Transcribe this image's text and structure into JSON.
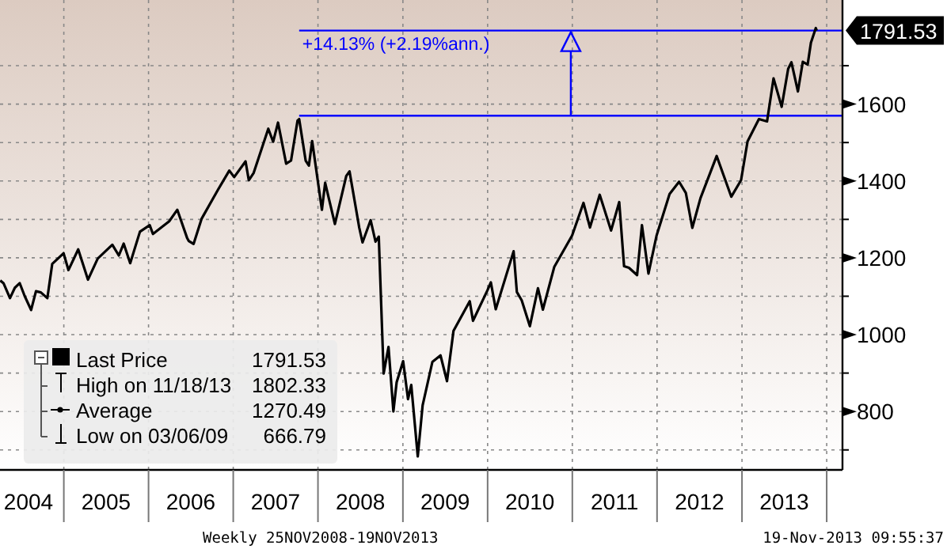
{
  "chart_data": {
    "type": "line",
    "x": [
      "2004-04-02",
      "2004-04-16",
      "2004-05-14",
      "2004-06-04",
      "2004-06-25",
      "2004-07-16",
      "2004-08-13",
      "2004-09-03",
      "2004-09-24",
      "2004-10-22",
      "2004-11-12",
      "2004-12-31",
      "2005-01-21",
      "2005-03-04",
      "2005-04-15",
      "2005-05-27",
      "2005-07-29",
      "2005-08-26",
      "2005-09-16",
      "2005-10-14",
      "2005-11-25",
      "2006-01-06",
      "2006-01-20",
      "2006-03-31",
      "2006-05-05",
      "2006-06-16",
      "2006-06-23",
      "2006-07-14",
      "2006-08-18",
      "2006-10-27",
      "2006-12-15",
      "2007-01-05",
      "2007-02-23",
      "2007-03-09",
      "2007-03-30",
      "2007-06-01",
      "2007-06-22",
      "2007-07-13",
      "2007-08-17",
      "2007-09-07",
      "2007-10-05",
      "2007-10-12",
      "2007-11-09",
      "2007-11-23",
      "2007-12-07",
      "2008-01-18",
      "2008-02-01",
      "2008-03-14",
      "2008-05-02",
      "2008-05-16",
      "2008-06-27",
      "2008-07-11",
      "2008-08-15",
      "2008-09-05",
      "2008-09-19",
      "2008-10-10",
      "2008-10-31",
      "2008-11-21",
      "2008-12-05",
      "2009-01-02",
      "2009-01-23",
      "2009-02-06",
      "2009-03-06",
      "2009-03-27",
      "2009-05-08",
      "2009-06-12",
      "2009-07-10",
      "2009-08-07",
      "2009-10-16",
      "2009-10-30",
      "2009-12-31",
      "2010-01-15",
      "2010-02-05",
      "2010-04-23",
      "2010-05-07",
      "2010-05-28",
      "2010-07-02",
      "2010-08-06",
      "2010-08-27",
      "2010-10-15",
      "2010-12-31",
      "2011-02-18",
      "2011-03-18",
      "2011-04-29",
      "2011-06-17",
      "2011-07-22",
      "2011-08-12",
      "2011-09-02",
      "2011-10-07",
      "2011-10-28",
      "2011-11-25",
      "2011-12-30",
      "2012-02-24",
      "2012-04-05",
      "2012-05-04",
      "2012-06-01",
      "2012-07-06",
      "2012-09-14",
      "2012-11-16",
      "2012-12-28",
      "2013-01-25",
      "2013-03-15",
      "2013-04-19",
      "2013-05-17",
      "2013-06-21",
      "2013-07-19",
      "2013-08-02",
      "2013-08-30",
      "2013-09-20",
      "2013-10-11",
      "2013-10-25",
      "2013-11-15",
      "2013-11-19"
    ],
    "series": [
      {
        "name": "Last Price",
        "color": "#000000",
        "values": [
          1141,
          1134,
          1095,
          1122,
          1134,
          1101,
          1064,
          1113,
          1110,
          1095,
          1184,
          1212,
          1168,
          1222,
          1143,
          1198,
          1234,
          1206,
          1237,
          1186,
          1268,
          1285,
          1262,
          1295,
          1325,
          1252,
          1244,
          1236,
          1302,
          1377,
          1427,
          1410,
          1451,
          1402,
          1421,
          1536,
          1502,
          1552,
          1445,
          1453,
          1557,
          1561,
          1453,
          1440,
          1504,
          1325,
          1395,
          1288,
          1413,
          1425,
          1278,
          1240,
          1298,
          1242,
          1255,
          899,
          968,
          800,
          876,
          931,
          832,
          869,
          683,
          816,
          929,
          946,
          879,
          1010,
          1087,
          1036,
          1115,
          1136,
          1066,
          1217,
          1111,
          1089,
          1022,
          1121,
          1065,
          1176,
          1258,
          1343,
          1279,
          1364,
          1271,
          1345,
          1178,
          1174,
          1155,
          1285,
          1159,
          1258,
          1366,
          1398,
          1369,
          1278,
          1355,
          1465,
          1359,
          1402,
          1503,
          1561,
          1555,
          1667,
          1593,
          1692,
          1709,
          1633,
          1710,
          1703,
          1760,
          1798,
          1791.53
        ]
      }
    ],
    "xlim": [
      "2004-04-01",
      "2014-03-10"
    ],
    "xticks": [
      {
        "value": "2004-07-02",
        "label": "2004"
      },
      {
        "value": "2005-01-01",
        "label": null
      },
      {
        "value": "2005-07-02",
        "label": "2005"
      },
      {
        "value": "2006-01-01",
        "label": null
      },
      {
        "value": "2006-07-02",
        "label": "2006"
      },
      {
        "value": "2007-01-01",
        "label": null
      },
      {
        "value": "2007-07-02",
        "label": "2007"
      },
      {
        "value": "2008-01-01",
        "label": null
      },
      {
        "value": "2008-07-02",
        "label": "2008"
      },
      {
        "value": "2009-01-01",
        "label": null
      },
      {
        "value": "2009-07-02",
        "label": "2009"
      },
      {
        "value": "2010-01-01",
        "label": null
      },
      {
        "value": "2010-07-02",
        "label": "2010"
      },
      {
        "value": "2011-01-01",
        "label": null
      },
      {
        "value": "2011-07-02",
        "label": "2011"
      },
      {
        "value": "2012-01-01",
        "label": null
      },
      {
        "value": "2012-07-02",
        "label": "2012"
      },
      {
        "value": "2013-01-01",
        "label": null
      },
      {
        "value": "2013-07-02",
        "label": "2013"
      },
      {
        "value": "2014-01-01",
        "label": null
      }
    ],
    "ylim": [
      648,
      1871
    ],
    "yticks": [
      {
        "value": 700,
        "label": null
      },
      800,
      {
        "value": 900,
        "label": null
      },
      1000,
      {
        "value": 1100,
        "label": null
      },
      1200,
      {
        "value": 1300,
        "label": null
      },
      1400,
      {
        "value": 1500,
        "label": null
      },
      1600,
      {
        "value": 1700,
        "label": null
      }
    ],
    "grid": true,
    "legend": "bottom left",
    "ref_lines": [
      {
        "axis": "y",
        "value": 1570,
        "color": "#0000ff"
      },
      {
        "axis": "y",
        "value": 1791.53,
        "label": "+14.13% (+2.19%ann.)",
        "color": "#0000ff"
      }
    ],
    "annotations": [
      {
        "text": "1791.53",
        "x": "2013-11-19",
        "y": 1791.53
      },
      "1791.53",
      "High on 11/18/13",
      "1802.33",
      "Average",
      "1270.49",
      "Low on 03/06/09",
      "666.79",
      "Weekly 25NOV2008-19NOV2013",
      "19-Nov-2013 09:55:37"
    ]
  }
}
